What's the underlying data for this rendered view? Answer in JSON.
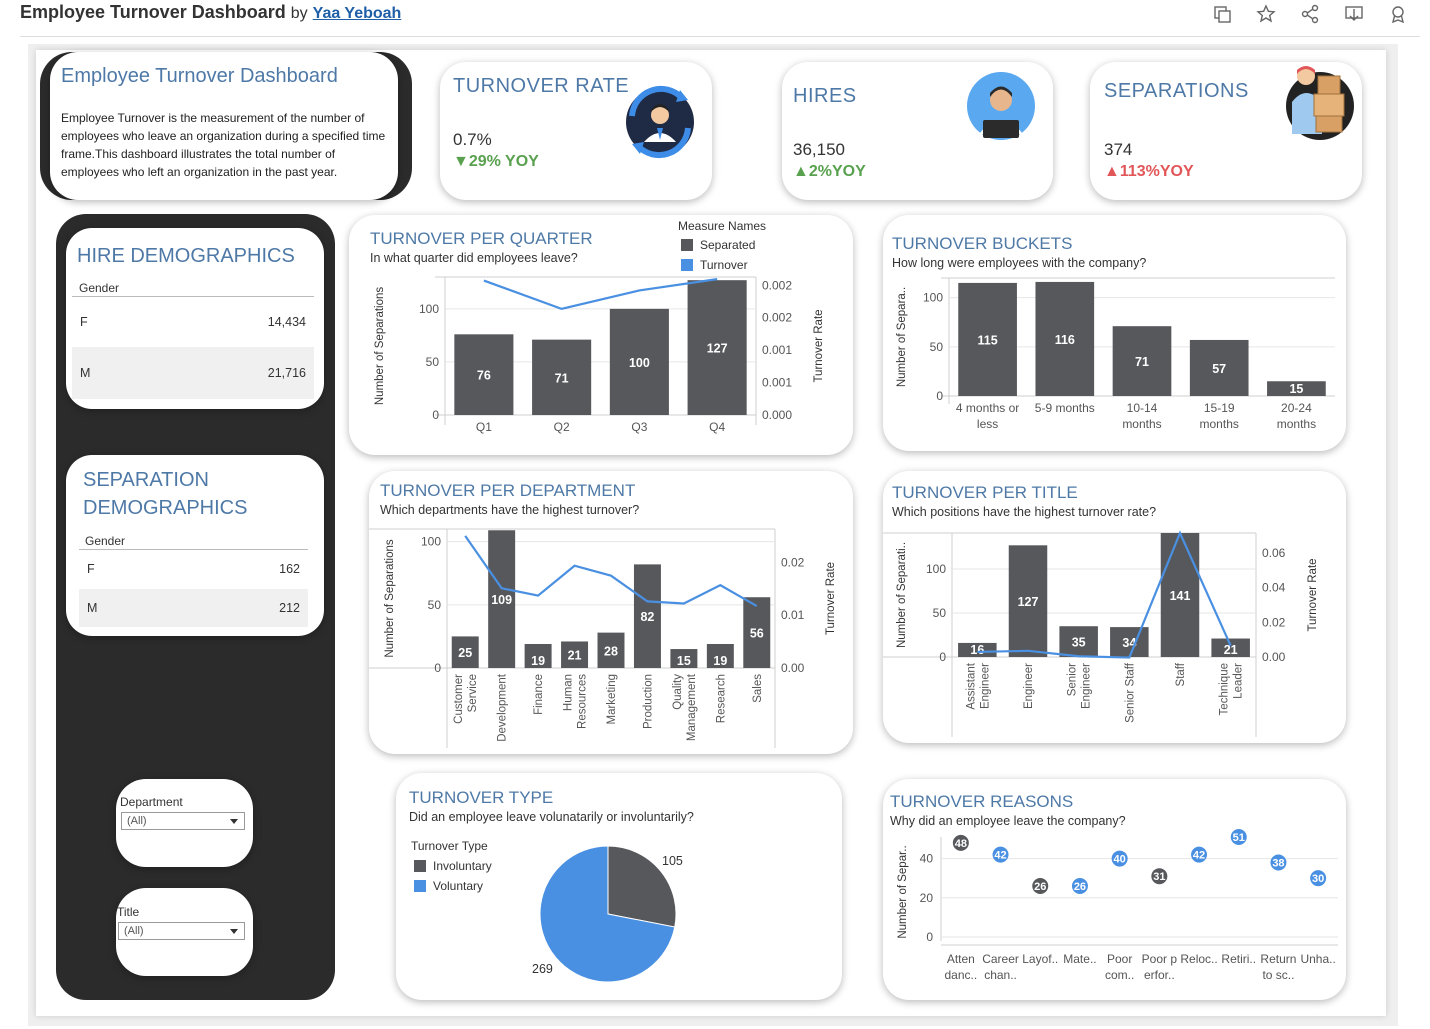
{
  "header": {
    "title": "Employee Turnover Dashboard",
    "by": "by",
    "author": "Yaa Yeboah"
  },
  "intro": {
    "title": "Employee Turnover Dashboard",
    "text": "Employee Turnover is the measurement of the number of employees who leave an organization during a specified time frame.This dashboard illustrates the total number of employees who left an organization in the past year."
  },
  "kpis": {
    "turnover_rate": {
      "title": "TURNOVER RATE",
      "value": "0.7%",
      "yoy": "▼29% YOY"
    },
    "hires": {
      "title": "HIRES",
      "value": "36,150",
      "yoy": "▲2%YOY"
    },
    "separations": {
      "title": "SEPARATIONS",
      "value": "374",
      "yoy": "▲113%YOY"
    }
  },
  "colors": {
    "separated": "#57585c",
    "turnover": "#4a90e2",
    "title_blue": "#4e79a7",
    "green": "#59a14f",
    "red": "#e15759"
  },
  "hire_demographics": {
    "title": "HIRE DEMOGRAPHICS",
    "header": "Gender",
    "rows": [
      {
        "label": "F",
        "value": "14,434"
      },
      {
        "label": "M",
        "value": "21,716"
      }
    ]
  },
  "separation_demographics": {
    "title_line1": "SEPARATION",
    "title_line2": "DEMOGRAPHICS",
    "header": "Gender",
    "rows": [
      {
        "label": "F",
        "value": "162"
      },
      {
        "label": "M",
        "value": "212"
      }
    ]
  },
  "filters": {
    "department": {
      "label": "Department",
      "value": "(All)"
    },
    "title": {
      "label": "Title",
      "value": "(All)"
    }
  },
  "chart_data": [
    {
      "id": "quarter",
      "type": "bar",
      "title": "TURNOVER PER QUARTER",
      "subtitle": "In what quarter did employees leave?",
      "legend_title": "Measure Names",
      "legend": [
        "Separated",
        "Turnover"
      ],
      "categories": [
        "Q1",
        "Q2",
        "Q3",
        "Q4"
      ],
      "series": [
        {
          "name": "Separated",
          "values": [
            76,
            71,
            100,
            127
          ]
        },
        {
          "name": "Turnover",
          "values": [
            0.0019,
            0.0015,
            0.00176,
            0.00192
          ]
        }
      ],
      "ylabel": "Number of Separations",
      "y2label": "Turnover Rate",
      "ylim": [
        0,
        130
      ],
      "yticks": [
        "0",
        "50",
        "100"
      ],
      "y2lim": [
        0,
        0.00195
      ],
      "y2ticks": [
        "0.000",
        "0.001",
        "0.001",
        "0.002",
        "0.002"
      ]
    },
    {
      "id": "buckets",
      "type": "bar",
      "title": "TURNOVER BUCKETS",
      "subtitle": "How long were employees with the company?",
      "categories": [
        [
          "4 months or",
          "less"
        ],
        [
          "5-9  months"
        ],
        [
          "10-14",
          "months"
        ],
        [
          "15-19",
          "months"
        ],
        [
          "20-24",
          "months"
        ]
      ],
      "values": [
        115,
        116,
        71,
        57,
        15
      ],
      "ylabel": "Number of Separa..",
      "ylim": [
        0,
        120
      ],
      "yticks": [
        "0",
        "50",
        "100"
      ]
    },
    {
      "id": "department",
      "type": "bar",
      "title": "TURNOVER PER DEPARTMENT",
      "subtitle": "Which departments have the highest turnover?",
      "categories": [
        [
          "Customer",
          "Service"
        ],
        [
          "Development"
        ],
        [
          "Finance"
        ],
        [
          "Human",
          "Resources"
        ],
        [
          "Marketing"
        ],
        [
          "Production"
        ],
        [
          "Quality",
          "Management"
        ],
        [
          "Research"
        ],
        [
          "Sales"
        ]
      ],
      "series": [
        {
          "name": "Separated",
          "values": [
            25,
            109,
            19,
            21,
            28,
            82,
            15,
            19,
            56
          ]
        },
        {
          "name": "Turnover",
          "values": [
            0.0252,
            0.0152,
            0.0138,
            0.0195,
            0.0176,
            0.0127,
            0.0123,
            0.0158,
            0.0118
          ]
        }
      ],
      "ylabel": "Number of Separations",
      "y2label": "Turnover Rate",
      "ylim": [
        0,
        110
      ],
      "yticks": [
        "0",
        "50",
        "100"
      ],
      "y2lim": [
        0,
        0.0265
      ],
      "y2ticks": [
        "0.00",
        "0.01",
        "0.02"
      ]
    },
    {
      "id": "title",
      "type": "bar",
      "title": "TURNOVER PER TITLE",
      "subtitle": "Which positions have the highest turnover rate?",
      "categories": [
        [
          "Assistant",
          "Engineer"
        ],
        [
          "Engineer"
        ],
        [
          "Senior",
          "Engineer"
        ],
        [
          "Senior Staff"
        ],
        [
          "Staff"
        ],
        [
          "Technique",
          "Leader"
        ]
      ],
      "series": [
        {
          "name": "Separated",
          "values": [
            16,
            127,
            35,
            34,
            141,
            21
          ]
        },
        {
          "name": "Turnover",
          "values": [
            0.0028,
            0.0034,
            0.0004,
            -0.0003,
            0.0684,
            0.0062
          ]
        }
      ],
      "ylabel": "Number of Separati..",
      "y2label": "Turnover Rate",
      "ylim": [
        0,
        141
      ],
      "yticks": [
        "0",
        "50",
        "100"
      ],
      "y2lim": [
        0,
        0.0684
      ],
      "y2ticks": [
        "0.00",
        "0.02",
        "0.04",
        "0.06"
      ]
    },
    {
      "id": "type",
      "type": "pie",
      "title": "TURNOVER TYPE",
      "subtitle": "Did an employee leave volunatarily or involuntarily?",
      "legend_title": "Turnover Type",
      "legend": [
        "Involuntary",
        "Voluntary"
      ],
      "categories": [
        "Involuntary",
        "Voluntary"
      ],
      "values": [
        105,
        269
      ]
    },
    {
      "id": "reasons",
      "type": "scatter",
      "title": "TURNOVER REASONS",
      "subtitle": "Why did an employee leave the company?",
      "categories": [
        [
          "Atten",
          "danc.."
        ],
        [
          "Career",
          "chan.."
        ],
        [
          "Layof.."
        ],
        [
          "Mate.."
        ],
        [
          "Poor",
          "com.."
        ],
        [
          "Poor p",
          "erfor.."
        ],
        [
          "Reloc.."
        ],
        [
          "Retiri.."
        ],
        [
          "Return",
          "to sc.."
        ],
        [
          "Unha.."
        ]
      ],
      "values": [
        48,
        42,
        26,
        26,
        40,
        31,
        42,
        51,
        38,
        30
      ],
      "point_colors": [
        "#57585c",
        "#4a90e2",
        "#57585c",
        "#4a90e2",
        "#4a90e2",
        "#57585c",
        "#4a90e2",
        "#4a90e2",
        "#4a90e2",
        "#4a90e2"
      ],
      "ylabel": "Number of Separ..",
      "ylim": [
        0,
        51
      ],
      "yticks": [
        "0",
        "20",
        "40"
      ]
    }
  ]
}
